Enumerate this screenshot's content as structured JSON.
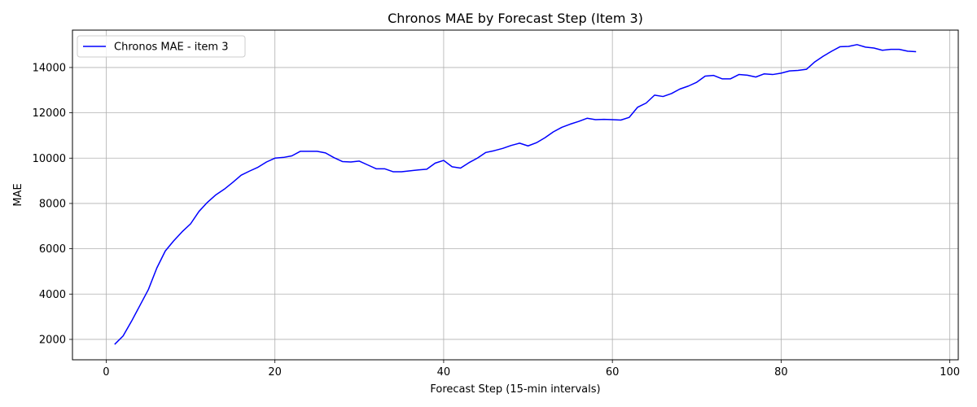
{
  "chart_data": {
    "type": "line",
    "title": "Chronos MAE by Forecast Step (Item 3)",
    "xlabel": "Forecast Step (15-min intervals)",
    "ylabel": "MAE",
    "xlim": [
      -4,
      101
    ],
    "ylim": [
      1100,
      15650
    ],
    "xticks": [
      0,
      20,
      40,
      60,
      80,
      100
    ],
    "yticks": [
      2000,
      4000,
      6000,
      8000,
      10000,
      12000,
      14000
    ],
    "grid": true,
    "legend_position": "top-left",
    "series": [
      {
        "name": "Chronos MAE - item 3",
        "color": "#0000ff",
        "x": [
          1,
          2,
          3,
          4,
          5,
          6,
          7,
          8,
          9,
          10,
          11,
          12,
          13,
          14,
          15,
          16,
          17,
          18,
          19,
          20,
          21,
          22,
          23,
          24,
          25,
          26,
          27,
          28,
          29,
          30,
          31,
          32,
          33,
          34,
          35,
          36,
          37,
          38,
          39,
          40,
          41,
          42,
          43,
          44,
          45,
          46,
          47,
          48,
          49,
          50,
          51,
          52,
          53,
          54,
          55,
          56,
          57,
          58,
          59,
          60,
          61,
          62,
          63,
          64,
          65,
          66,
          67,
          68,
          69,
          70,
          71,
          72,
          73,
          74,
          75,
          76,
          77,
          78,
          79,
          80,
          81,
          82,
          83,
          84,
          85,
          86,
          87,
          88,
          89,
          90,
          91,
          92,
          93,
          94,
          95,
          96
        ],
        "y": [
          1780,
          2150,
          2800,
          3500,
          4200,
          5150,
          5900,
          6350,
          6750,
          7100,
          7650,
          8050,
          8380,
          8630,
          8930,
          9250,
          9430,
          9600,
          9830,
          10000,
          10030,
          10100,
          10300,
          10300,
          10300,
          10230,
          10020,
          9850,
          9830,
          9870,
          9700,
          9530,
          9530,
          9400,
          9400,
          9440,
          9480,
          9510,
          9780,
          9900,
          9620,
          9560,
          9800,
          10000,
          10250,
          10330,
          10430,
          10560,
          10660,
          10540,
          10680,
          10900,
          11160,
          11360,
          11500,
          11620,
          11760,
          11700,
          11710,
          11700,
          11680,
          11800,
          12250,
          12430,
          12780,
          12720,
          12850,
          13050,
          13180,
          13350,
          13620,
          13650,
          13500,
          13500,
          13690,
          13660,
          13580,
          13720,
          13690,
          13750,
          13850,
          13870,
          13920,
          14250,
          14500,
          14720,
          14920,
          14930,
          15010,
          14900,
          14860,
          14760,
          14800,
          14800,
          14720,
          14700
        ]
      }
    ]
  }
}
